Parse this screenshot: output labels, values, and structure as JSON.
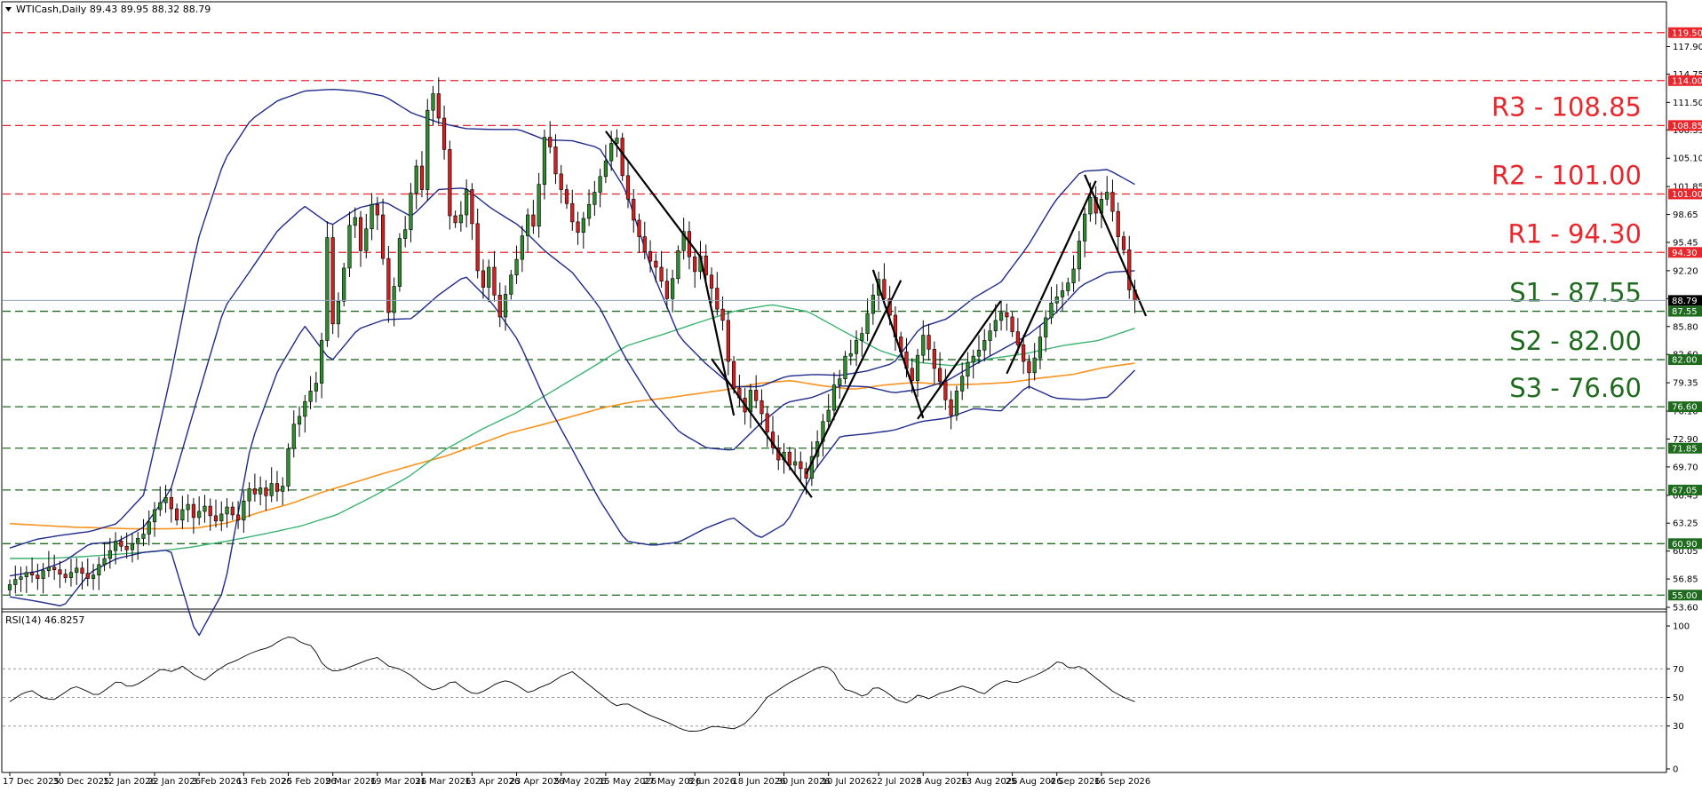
{
  "chart_data": {
    "type": "candlestick",
    "symbol": "WTICash",
    "timeframe": "Daily",
    "ohlc_header": "89.43 89.95 88.32 88.79",
    "last_price": 88.79,
    "ylim": [
      53.6,
      120.8
    ],
    "y_ticks": [
      "117.90",
      "114.75",
      "111.50",
      "108.35",
      "105.10",
      "101.85",
      "98.65",
      "95.45",
      "92.20",
      "89.00",
      "85.80",
      "82.60",
      "79.35",
      "76.10",
      "72.90",
      "69.70",
      "66.45",
      "63.25",
      "60.05",
      "56.85",
      "53.60"
    ],
    "x_ticks": [
      {
        "label": "17 Dec 2025",
        "i": 0
      },
      {
        "label": "30 Dec 2025",
        "i": 9
      },
      {
        "label": "12 Jan 2026",
        "i": 18
      },
      {
        "label": "22 Jan 2026",
        "i": 26
      },
      {
        "label": "3 Feb 2026",
        "i": 34
      },
      {
        "label": "13 Feb 2026",
        "i": 42
      },
      {
        "label": "25 Feb 2026",
        "i": 50
      },
      {
        "label": "9 Mar 2026",
        "i": 58
      },
      {
        "label": "19 Mar 2026",
        "i": 66
      },
      {
        "label": "31 Mar 2026",
        "i": 74
      },
      {
        "label": "13 Apr 2026",
        "i": 83
      },
      {
        "label": "23 Apr 2026",
        "i": 91
      },
      {
        "label": "5 May 2026",
        "i": 99
      },
      {
        "label": "15 May 2026",
        "i": 107
      },
      {
        "label": "27 May 2026",
        "i": 115
      },
      {
        "label": "8 Jun 2026",
        "i": 123
      },
      {
        "label": "18 Jun 2026",
        "i": 131
      },
      {
        "label": "30 Jun 2026",
        "i": 139
      },
      {
        "label": "10 Jul 2026",
        "i": 147
      },
      {
        "label": "22 Jul 2026",
        "i": 156
      },
      {
        "label": "3 Aug 2026",
        "i": 164
      },
      {
        "label": "13 Aug 2026",
        "i": 172
      },
      {
        "label": "25 Aug 2026",
        "i": 180
      },
      {
        "label": "4 Sep 2026",
        "i": 188
      },
      {
        "label": "16 Sep 2026",
        "i": 196
      }
    ],
    "levels": [
      {
        "value": 119.5,
        "label": "119.50",
        "color": "#e8262b"
      },
      {
        "value": 114.0,
        "label": "114.00",
        "color": "#e8262b"
      },
      {
        "value": 108.85,
        "label": "108.85",
        "color": "#e8262b",
        "annotation": "R3 - 108.85"
      },
      {
        "value": 101.0,
        "label": "101.00",
        "color": "#e8262b",
        "annotation": "R2 - 101.00"
      },
      {
        "value": 94.3,
        "label": "94.30",
        "color": "#e8262b",
        "annotation": "R1 - 94.30"
      },
      {
        "value": 87.55,
        "label": "87.55",
        "color": "#1e6b1e",
        "annotation": "S1 - 87.55"
      },
      {
        "value": 82.0,
        "label": "82.00",
        "color": "#1e6b1e",
        "annotation": "S2 - 82.00"
      },
      {
        "value": 76.6,
        "label": "76.60",
        "color": "#1e6b1e",
        "annotation": "S3 - 76.60"
      },
      {
        "value": 71.85,
        "label": "71.85",
        "color": "#1e6b1e"
      },
      {
        "value": 67.05,
        "label": "67.05",
        "color": "#1e6b1e"
      },
      {
        "value": 60.9,
        "label": "60.90",
        "color": "#1e6b1e"
      },
      {
        "value": 55.0,
        "label": "55.00",
        "color": "#1e6b1e"
      }
    ],
    "closes": [
      56.2,
      56.8,
      57.1,
      57.6,
      57.3,
      56.9,
      57.8,
      58.2,
      57.9,
      57.4,
      57.0,
      57.6,
      58.1,
      57.5,
      56.9,
      57.3,
      58.5,
      59.2,
      60.1,
      61.2,
      60.6,
      60.2,
      60.9,
      61.5,
      62.0,
      63.4,
      64.8,
      65.6,
      66.2,
      64.9,
      63.6,
      64.8,
      65.4,
      63.9,
      64.6,
      65.2,
      64.1,
      63.5,
      64.3,
      65.1,
      64.2,
      63.6,
      65.8,
      67.2,
      66.6,
      67.3,
      66.4,
      67.8,
      66.9,
      67.5,
      71.8,
      74.6,
      75.5,
      77.2,
      78.4,
      79.3,
      84.2,
      96.0,
      86.1,
      88.7,
      92.5,
      97.4,
      98.3,
      94.5,
      97.0,
      99.8,
      98.6,
      93.6,
      87.4,
      90.4,
      95.9,
      96.9,
      101.1,
      104.2,
      101.5,
      110.6,
      112.5,
      109.7,
      106.1,
      98.5,
      97.7,
      98.6,
      101.5,
      97.6,
      92.2,
      90.3,
      92.6,
      89.4,
      86.9,
      89.5,
      91.7,
      93.5,
      96.2,
      98.6,
      97.3,
      102.1,
      107.5,
      106.4,
      103.3,
      101.5,
      99.9,
      97.8,
      96.6,
      98.2,
      99.8,
      101.2,
      103.0,
      104.8,
      106.8,
      107.4,
      103.1,
      100.4,
      98.0,
      96.1,
      94.4,
      93.3,
      92.6,
      91.0,
      89.0,
      91.3,
      94.5,
      96.7,
      93.8,
      92.1,
      93.9,
      91.7,
      90.2,
      87.8,
      86.5,
      81.8,
      78.7,
      77.6,
      76.0,
      78.5,
      77.3,
      75.8,
      73.7,
      71.9,
      70.5,
      71.4,
      69.9,
      70.3,
      69.5,
      68.4,
      70.9,
      72.6,
      74.9,
      76.2,
      79.1,
      79.8,
      82.4,
      82.7,
      84.2,
      85.0,
      87.3,
      89.4,
      91.2,
      89.0,
      87.1,
      84.6,
      82.9,
      81.0,
      79.6,
      82.5,
      84.8,
      83.2,
      81.0,
      79.5,
      77.4,
      75.6,
      78.4,
      80.1,
      81.7,
      82.4,
      83.1,
      84.2,
      85.3,
      86.5,
      87.4,
      86.9,
      85.2,
      83.7,
      81.8,
      80.5,
      82.2,
      84.6,
      86.8,
      88.5,
      89.2,
      89.9,
      90.8,
      92.4,
      95.6,
      98.7,
      100.6,
      98.8,
      100.4,
      101.2,
      99.0,
      96.1,
      94.6,
      90.0,
      88.79
    ],
    "bb_upper": [
      60.4,
      61.4,
      61.9,
      62.3,
      63.2,
      66.5,
      80.0,
      95.5,
      104.8,
      109.5,
      111.7,
      112.8,
      113.0,
      112.8,
      112.2,
      110.3,
      109.2,
      108.5,
      108.4,
      108.4,
      107.2,
      107.1,
      106.3,
      101.4,
      92.0,
      84.6,
      81.5,
      78.9,
      78.9,
      80.1,
      80.3,
      80.2,
      80.7,
      81.6,
      85.7,
      86.7,
      89.1,
      90.9,
      95.0,
      100.1,
      103.6,
      103.8,
      102.1
    ],
    "bb_mid": [
      57.2,
      57.7,
      58.8,
      60.9,
      61.1,
      62.8,
      67.0,
      77.5,
      87.9,
      92.3,
      96.8,
      99.6,
      97.4,
      99.4,
      100.1,
      98.4,
      101.5,
      101.7,
      99.3,
      97.4,
      94.4,
      92.0,
      88.1,
      82.1,
      77.2,
      73.7,
      71.9,
      71.6,
      74.6,
      77.1,
      77.7,
      79.0,
      78.9,
      78.2,
      78.6,
      79.6,
      81.4,
      83.1,
      84.8,
      87.2,
      90.5,
      92.0,
      92.2
    ],
    "bb_lower": [
      54.8,
      54.3,
      53.7,
      57.6,
      59.2,
      59.9,
      60.2,
      50.0,
      55.6,
      72.3,
      80.7,
      85.9,
      81.8,
      85.5,
      86.6,
      86.7,
      89.4,
      91.6,
      88.5,
      84.1,
      77.3,
      71.7,
      66.0,
      61.2,
      60.7,
      61.1,
      62.7,
      63.9,
      61.5,
      63.3,
      69.1,
      73.2,
      73.5,
      73.9,
      74.9,
      75.3,
      76.4,
      76.1,
      79.0,
      77.6,
      77.4,
      77.7,
      80.8
    ],
    "ma_green": [
      59.2,
      59.2,
      59.4,
      59.7,
      60.0,
      60.5,
      61.2,
      62.0,
      62.9,
      64.2,
      66.3,
      68.6,
      71.7,
      74.0,
      76.0,
      78.5,
      81.0,
      83.6,
      84.9,
      86.3,
      87.6,
      88.3,
      87.5,
      85.2,
      83.0,
      81.7,
      81.3,
      82.1,
      82.7,
      83.6,
      84.2,
      85.6
    ],
    "ma_orange": [
      63.2,
      63.0,
      62.8,
      62.7,
      62.6,
      62.6,
      62.7,
      63.3,
      64.5,
      65.5,
      66.8,
      67.9,
      69.0,
      70.0,
      71.0,
      72.3,
      73.6,
      74.5,
      75.5,
      76.5,
      77.2,
      77.6,
      78.1,
      78.6,
      79.3,
      79.6,
      79.0,
      78.6,
      79.1,
      79.4,
      79.1,
      79.2,
      79.4,
      79.9,
      80.3,
      81.1,
      81.6
    ],
    "trendlines": [
      {
        "i0": 107,
        "v0": 108.2,
        "i1": 124,
        "v1": 93.8
      },
      {
        "i0": 124,
        "v0": 93.8,
        "i1": 130,
        "v1": 75.6
      },
      {
        "i0": 126,
        "v0": 82.1,
        "i1": 144,
        "v1": 66.2
      },
      {
        "i0": 143,
        "v0": 68.9,
        "i1": 160,
        "v1": 91.1
      },
      {
        "i0": 155,
        "v0": 92.3,
        "i1": 164,
        "v1": 75.3
      },
      {
        "i0": 163,
        "v0": 75.2,
        "i1": 178,
        "v1": 88.8
      },
      {
        "i0": 179,
        "v0": 80.4,
        "i1": 195,
        "v1": 102.5
      },
      {
        "i0": 193,
        "v0": 103.2,
        "i1": 204,
        "v1": 87.0
      }
    ],
    "rsi": {
      "label": "RSI(14) 46.8257",
      "ylim": [
        0,
        100
      ],
      "levels": [
        70,
        50,
        30
      ],
      "level_labels": [
        "100",
        "70",
        "50",
        "30",
        "0"
      ],
      "values": [
        47,
        52,
        55,
        50,
        48,
        53,
        58,
        55,
        51,
        56,
        62,
        57,
        60,
        65,
        70,
        68,
        72,
        66,
        62,
        68,
        73,
        76,
        80,
        83,
        85,
        90,
        93,
        88,
        86,
        72,
        68,
        70,
        73,
        76,
        78,
        72,
        70,
        66,
        60,
        55,
        57,
        62,
        56,
        52,
        55,
        60,
        62,
        58,
        53,
        57,
        60,
        65,
        68,
        62,
        56,
        50,
        44,
        46,
        42,
        38,
        35,
        32,
        28,
        26,
        27,
        30,
        29,
        28,
        32,
        40,
        50,
        55,
        60,
        64,
        68,
        72,
        70,
        56,
        54,
        50,
        58,
        54,
        48,
        46,
        52,
        49,
        53,
        55,
        58,
        56,
        52,
        58,
        62,
        60,
        63,
        66,
        70,
        76,
        70,
        72,
        66,
        60,
        54,
        50,
        47
      ]
    }
  }
}
